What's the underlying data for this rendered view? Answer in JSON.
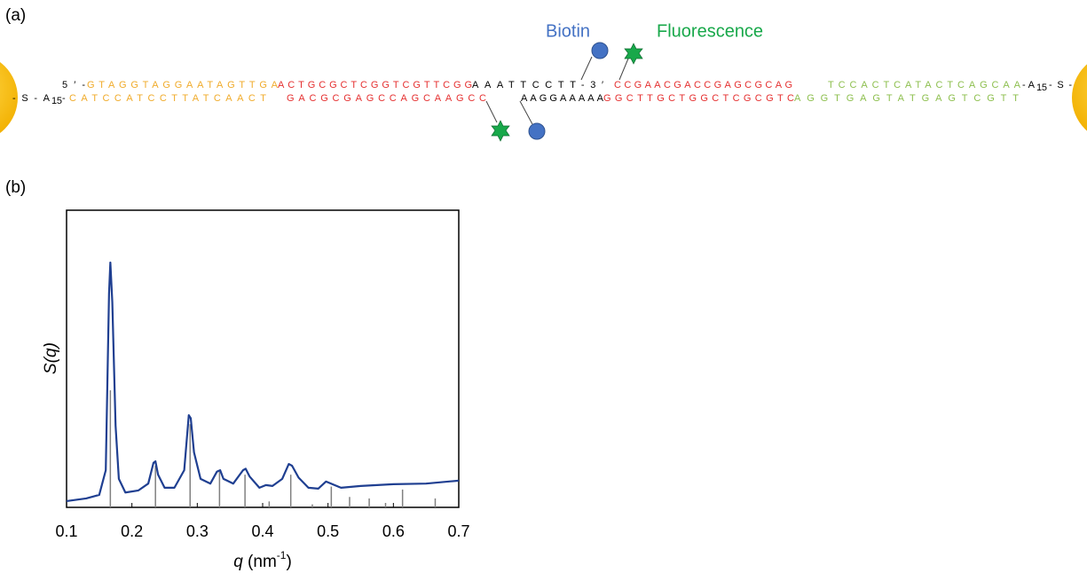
{
  "panel_labels": [
    "(a)",
    "(b)"
  ],
  "panel_a": {
    "annotations": {
      "biotin": "Biotin",
      "fluorescence": "Fluorescence"
    },
    "top_strand": [
      {
        "text": "5′-",
        "color": "#000000"
      },
      {
        "text": "GTAGGTAGGAATAGTTGA",
        "color": "#f0ab2a"
      },
      {
        "text": "ACTGCGCTCGGTCGTTCGG",
        "color": "#e53030"
      },
      {
        "text": "AAATTCCTT-3′",
        "color": "#000000"
      },
      {
        "text": "CCGAACGACCGAGCGCAG",
        "color": "#e53030"
      },
      {
        "text": "TCCACTCATACTCAGCAA",
        "color": "#8dbf4e"
      },
      {
        "text": "-A",
        "color": "#000000"
      },
      {
        "text": "15",
        "color": "#000000"
      },
      {
        "text": "-S-",
        "color": "#000000"
      }
    ],
    "bottom_strand": [
      {
        "text": "-S-A",
        "color": "#000000"
      },
      {
        "text": "15",
        "color": "#000000"
      },
      {
        "text": "-",
        "color": "#000000"
      },
      {
        "text": "CATCCATCCTTATCAACT",
        "color": "#f0ab2a"
      },
      {
        "text": "GACGCGAGCCAGCAAGCC",
        "color": "#e53030"
      },
      {
        "text": "AAGGAAAAA",
        "color": "#000000"
      },
      {
        "text": "GGCTTGCTGGCTCGCGTC",
        "color": "#e53030"
      },
      {
        "text": "AGGTGAGTATGAGTCGTT",
        "color": "#8dbf4e"
      }
    ]
  },
  "chart_data": {
    "type": "line",
    "ylabel": {
      "symbol": "S",
      "open": "(",
      "variable": "q",
      "close": ")"
    },
    "xlabel": {
      "symbol": "q",
      "unit": " (nm",
      "exponent": "-1",
      "close": ")"
    },
    "xlim": [
      0.1,
      0.7
    ],
    "xticks": [
      0.1,
      0.2,
      0.3,
      0.4,
      0.5,
      0.6,
      0.7
    ],
    "ylim": [
      0,
      100
    ],
    "series": [
      {
        "color": "#1f3f91",
        "style": "line",
        "x": [
          0.1,
          0.13,
          0.15,
          0.16,
          0.165,
          0.167,
          0.17,
          0.175,
          0.18,
          0.19,
          0.21,
          0.225,
          0.233,
          0.236,
          0.24,
          0.25,
          0.265,
          0.28,
          0.287,
          0.29,
          0.295,
          0.305,
          0.32,
          0.33,
          0.335,
          0.34,
          0.355,
          0.37,
          0.374,
          0.38,
          0.395,
          0.405,
          0.415,
          0.43,
          0.44,
          0.445,
          0.455,
          0.47,
          0.485,
          0.497,
          0.51,
          0.52,
          0.55,
          0.6,
          0.65,
          0.7
        ],
        "values": [
          2.1,
          3,
          4.2,
          12.5,
          72,
          82.4,
          69,
          27.5,
          9.6,
          5,
          5.7,
          8,
          15,
          15.5,
          11,
          6.6,
          6.6,
          12.5,
          31,
          30,
          18.5,
          9.6,
          8,
          12,
          12.5,
          9.6,
          8,
          12.5,
          13,
          10.4,
          6.6,
          7.5,
          7.2,
          9.6,
          14.6,
          14,
          10,
          6.6,
          6.3,
          8.7,
          7.5,
          6.6,
          7.2,
          7.8,
          8,
          9
        ]
      },
      {
        "color": "#808080",
        "style": "stem",
        "x": [
          0.167,
          0.236,
          0.289,
          0.334,
          0.373,
          0.41,
          0.443,
          0.476,
          0.505,
          0.533,
          0.563,
          0.588,
          0.614,
          0.664
        ],
        "values": [
          39.4,
          14,
          28,
          12,
          11,
          2,
          11,
          1,
          7,
          3.5,
          3,
          1.5,
          6,
          3
        ]
      }
    ]
  }
}
